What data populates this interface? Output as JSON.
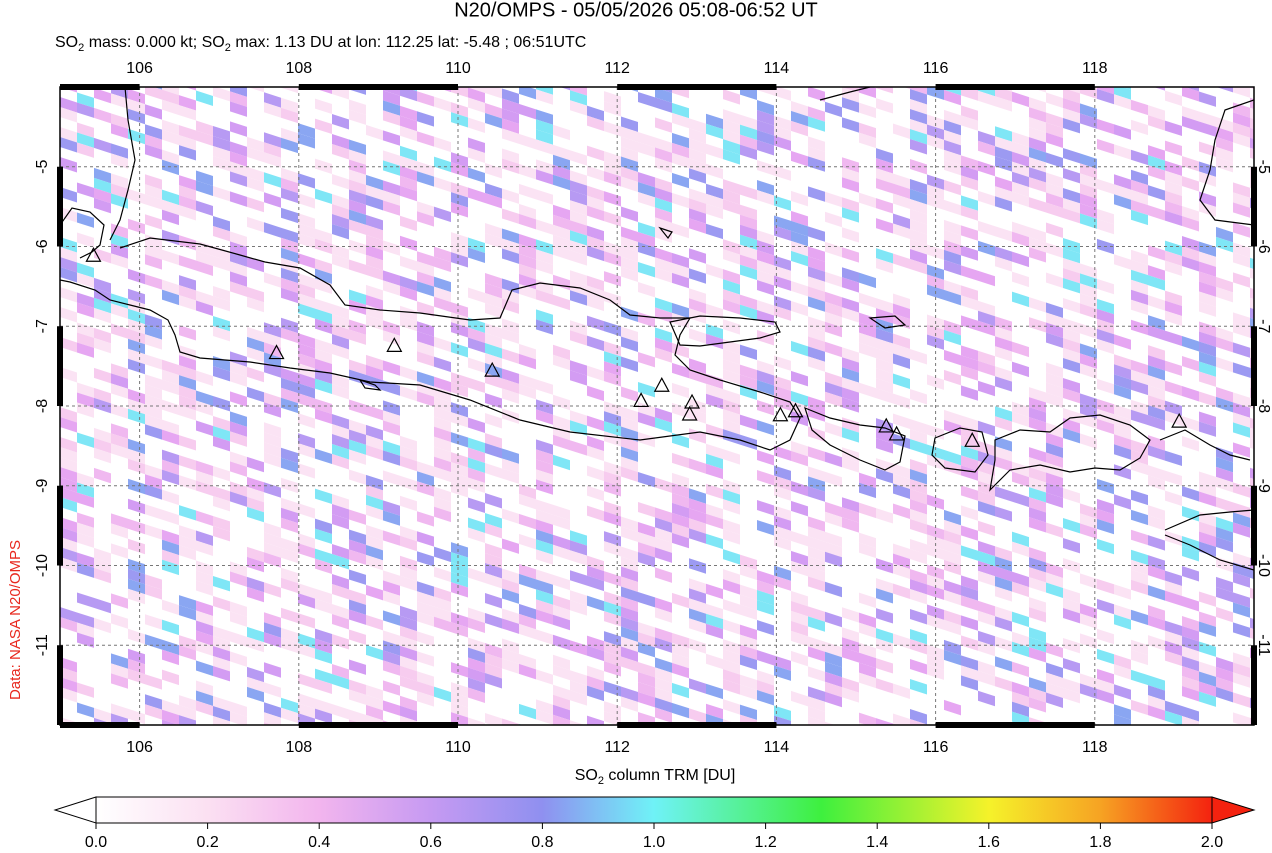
{
  "header": {
    "title": "N20/OMPS - 05/05/2026 05:08-06:52 UT",
    "subtitle": [
      "SO",
      "2",
      " mass: 0.000 kt; SO",
      "2",
      " max: 1.13 DU at lon: 112.25 lat: -5.48 ; 06:51UTC"
    ]
  },
  "map": {
    "xlim": [
      105,
      120
    ],
    "ylim": [
      -12,
      -4
    ],
    "xticks": [
      106,
      108,
      110,
      112,
      114,
      116,
      118
    ],
    "yticks": [
      -5,
      -6,
      -7,
      -8,
      -9,
      -10,
      -11
    ],
    "grid": true,
    "volcanoes": [
      {
        "lon": 105.42,
        "lat": -6.11
      },
      {
        "lon": 107.72,
        "lat": -7.33
      },
      {
        "lon": 109.2,
        "lat": -7.24
      },
      {
        "lon": 110.43,
        "lat": -7.55
      },
      {
        "lon": 112.3,
        "lat": -7.93
      },
      {
        "lon": 112.56,
        "lat": -7.74
      },
      {
        "lon": 112.94,
        "lat": -7.95
      },
      {
        "lon": 112.91,
        "lat": -8.1
      },
      {
        "lon": 114.05,
        "lat": -8.11
      },
      {
        "lon": 114.24,
        "lat": -8.06
      },
      {
        "lon": 115.38,
        "lat": -8.25
      },
      {
        "lon": 115.51,
        "lat": -8.35
      },
      {
        "lon": 116.46,
        "lat": -8.43
      },
      {
        "lon": 119.06,
        "lat": -8.19
      }
    ]
  },
  "colorbar": {
    "label": [
      "SO",
      "2",
      " column TRM [DU]"
    ],
    "range": [
      0,
      2
    ],
    "ticks": [
      {
        "value": 0,
        "label": "0.0"
      },
      {
        "value": 0.2,
        "label": "0.2"
      },
      {
        "value": 0.4,
        "label": "0.4"
      },
      {
        "value": 0.6,
        "label": "0.6"
      },
      {
        "value": 0.8,
        "label": "0.8"
      },
      {
        "value": 1,
        "label": "1.0"
      },
      {
        "value": 1.2,
        "label": "1.2"
      },
      {
        "value": 1.4,
        "label": "1.4"
      },
      {
        "value": 1.6,
        "label": "1.6"
      },
      {
        "value": 1.8,
        "label": "1.8"
      },
      {
        "value": 2,
        "label": "2.0"
      }
    ]
  },
  "credit": "Data: NASA N20/OMPS"
}
